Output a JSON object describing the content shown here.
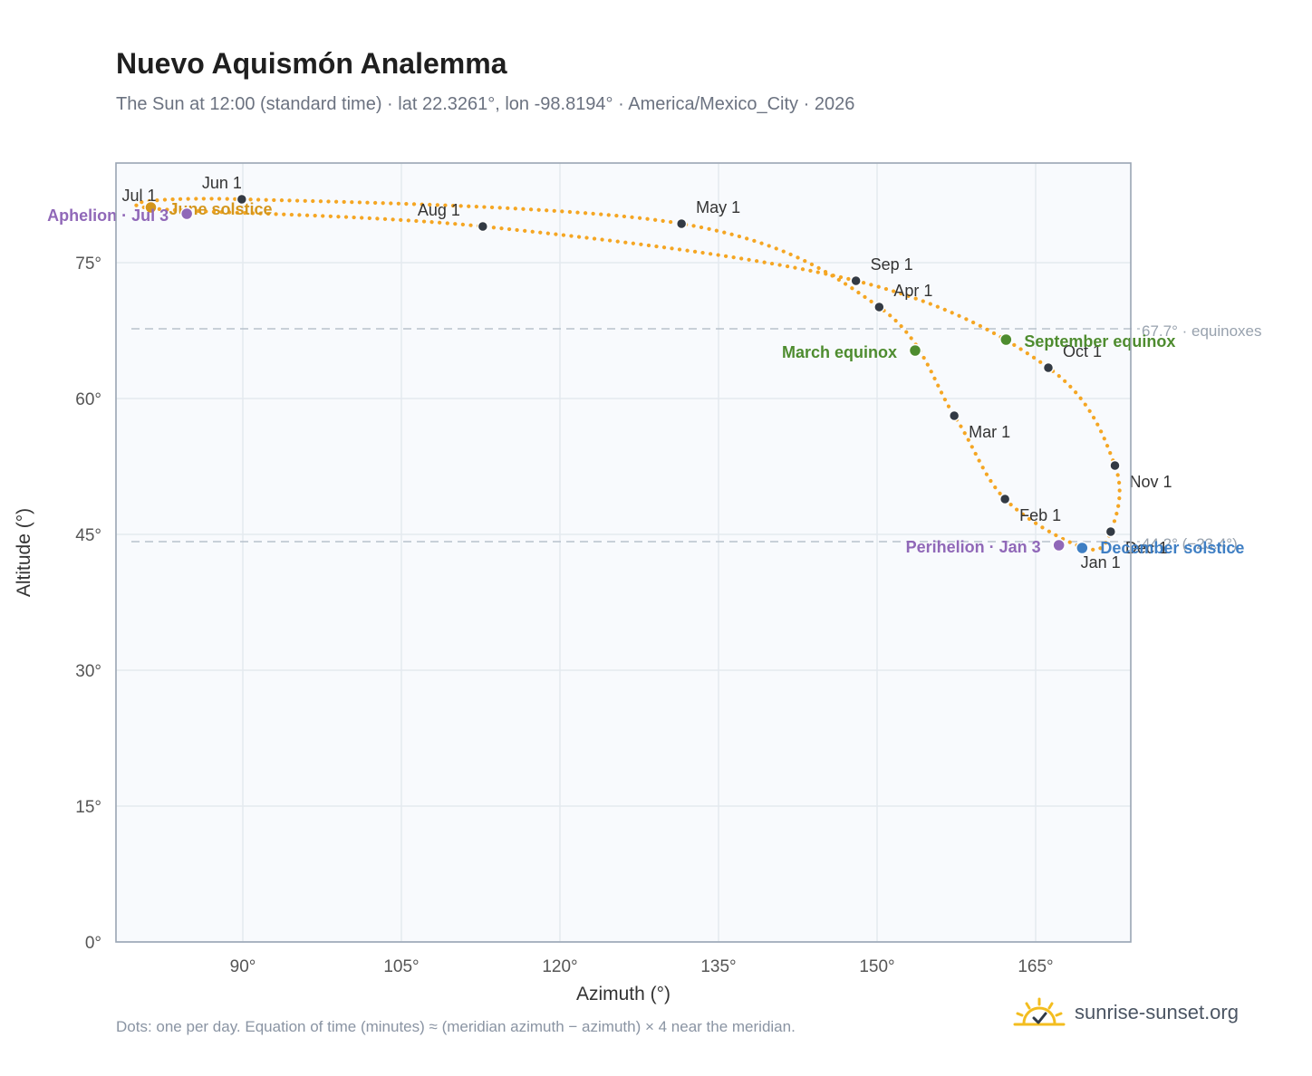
{
  "header": {
    "title": "Nuevo Aquismón Analemma",
    "subtitle": "The Sun at 12:00 (standard time) · lat 22.3261°, lon -98.8194° · America/Mexico_City · 2026"
  },
  "footer": {
    "note": "Dots: one per day. Equation of time (minutes) ≈ (meridian azimuth − azimuth) × 4 near the meridian.",
    "brand": "sunrise-sunset.org",
    "brand_icon": "sun-icon"
  },
  "colors": {
    "path": "#f5a623",
    "month_marker": "#333a44",
    "equinox": "#4e8c2f",
    "june_solstice": "#d4961c",
    "december_solstice": "#3f7fc4",
    "apsis": "#9068b8",
    "plot_bg": "#f8fafd",
    "grid": "#e4e9ef",
    "ref_line": "#b8c2cc"
  },
  "chart_data": {
    "type": "scatter",
    "xlabel": "Azimuth (°)",
    "ylabel": "Altitude (°)",
    "xlim": [
      78,
      174
    ],
    "ylim": [
      0,
      86
    ],
    "xticks": [
      90,
      105,
      120,
      135,
      150,
      165
    ],
    "yticks": [
      0,
      15,
      30,
      45,
      60,
      75
    ],
    "xtick_labels": [
      "90°",
      "105°",
      "120°",
      "135°",
      "150°",
      "165°"
    ],
    "ytick_labels": [
      "0°",
      "15°",
      "30°",
      "45°",
      "60°",
      "75°"
    ],
    "grid": true,
    "reference_lines": [
      {
        "y": 67.7,
        "label": "67.7° · equinoxes"
      },
      {
        "y": 44.2,
        "label": "44.2° (−23.4°)"
      }
    ],
    "month_markers": [
      {
        "label": "Jan 1",
        "az": 169.6,
        "alt": 43.5
      },
      {
        "label": "Feb 1",
        "az": 162.1,
        "alt": 48.9
      },
      {
        "label": "Mar 1",
        "az": 157.3,
        "alt": 58.1
      },
      {
        "label": "Apr 1",
        "az": 150.2,
        "alt": 70.1
      },
      {
        "label": "May 1",
        "az": 131.5,
        "alt": 79.3
      },
      {
        "label": "Jun 1",
        "az": 89.9,
        "alt": 82.0
      },
      {
        "label": "Jul 1",
        "az": 81.3,
        "alt": 81.0
      },
      {
        "label": "Aug 1",
        "az": 112.7,
        "alt": 79.0
      },
      {
        "label": "Sep 1",
        "az": 148.0,
        "alt": 73.0
      },
      {
        "label": "Oct 1",
        "az": 166.2,
        "alt": 63.4
      },
      {
        "label": "Nov 1",
        "az": 172.5,
        "alt": 52.6
      },
      {
        "label": "Dec 1",
        "az": 172.1,
        "alt": 45.3
      }
    ],
    "events": [
      {
        "label": "March equinox",
        "az": 153.6,
        "alt": 65.3,
        "kind": "equinox"
      },
      {
        "label": "September equinox",
        "az": 162.2,
        "alt": 66.5,
        "kind": "equinox"
      },
      {
        "label": "June solstice",
        "az": 81.3,
        "alt": 81.1,
        "kind": "june_solstice"
      },
      {
        "label": "December solstice",
        "az": 169.4,
        "alt": 43.5,
        "kind": "december_solstice"
      },
      {
        "label": "Perihelion · Jan 3",
        "az": 167.2,
        "alt": 43.8,
        "kind": "apsis"
      },
      {
        "label": "Aphelion · Jul 3",
        "az": 84.7,
        "alt": 80.4,
        "kind": "apsis"
      }
    ]
  }
}
